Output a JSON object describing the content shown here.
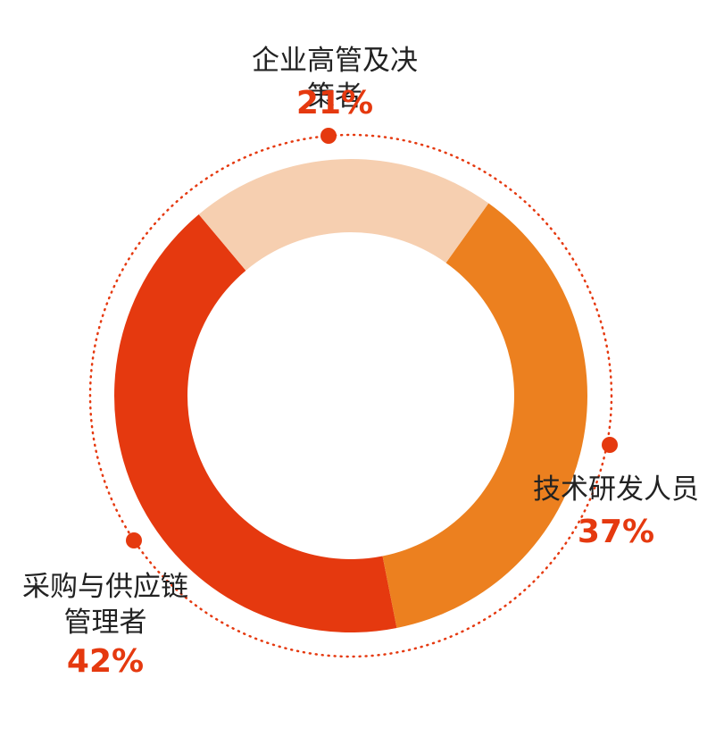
{
  "chart_data": {
    "type": "donut",
    "categories": [
      "企业高管及决策者",
      "技术研发人员",
      "采购与供应链管理者"
    ],
    "values": [
      21,
      37,
      42
    ],
    "value_labels": [
      "21%",
      "37%",
      "42%"
    ],
    "colors": [
      "#f6cfb0",
      "#ec801f",
      "#e5390f"
    ]
  }
}
